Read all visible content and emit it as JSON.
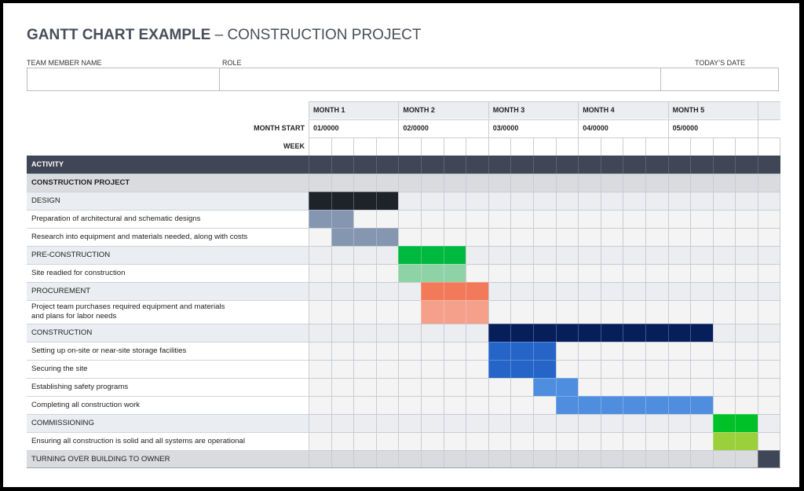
{
  "title": {
    "bold": "GANTT CHART EXAMPLE",
    "regular": " – CONSTRUCTION PROJECT"
  },
  "header_fields": {
    "team_member": "TEAM MEMBER NAME",
    "role": "ROLE",
    "date": "TODAY’S DATE"
  },
  "colors": {
    "header_dark": "#3f4756",
    "project_row": "#d9dbde",
    "phase_row": "#eaedf1",
    "task_row": "#ffffff",
    "grid_line": "#c8ccd2",
    "cell_empty_phase": "#ebedf0",
    "cell_empty_task": "#f4f4f4"
  },
  "chart_data": {
    "type": "table",
    "months": [
      {
        "label": "MONTH 1",
        "start": "01/0000"
      },
      {
        "label": "MONTH 2",
        "start": "02/0000"
      },
      {
        "label": "MONTH 3",
        "start": "03/0000"
      },
      {
        "label": "MONTH 4",
        "start": "04/0000"
      },
      {
        "label": "MONTH 5",
        "start": "05/0000"
      }
    ],
    "weeks_per_month": 4,
    "row_labels": {
      "month_start": "MONTH START",
      "week": "WEEK",
      "activity": "ACTIVITY"
    },
    "rows": [
      {
        "label": "CONSTRUCTION PROJECT",
        "kind": "project",
        "start_week": null,
        "end_week": null
      },
      {
        "label": "DESIGN",
        "kind": "phase",
        "start_week": 1,
        "end_week": 4,
        "color": "#1e2329"
      },
      {
        "label": "Preparation of architectural and schematic designs",
        "kind": "task",
        "start_week": 1,
        "end_week": 2,
        "color": "#8496b0"
      },
      {
        "label": "Research into equipment and materials needed, along with costs",
        "kind": "task",
        "start_week": 2,
        "end_week": 4,
        "color": "#8496b0"
      },
      {
        "label": "PRE-CONSTRUCTION",
        "kind": "phase",
        "start_week": 5,
        "end_week": 7,
        "color": "#00b93f"
      },
      {
        "label": "Site readied for construction",
        "kind": "task",
        "start_week": 5,
        "end_week": 7,
        "color": "#8ed3a5"
      },
      {
        "label": "PROCUREMENT",
        "kind": "phase",
        "start_week": 6,
        "end_week": 8,
        "color": "#f27a5a"
      },
      {
        "label": "Project team purchases required equipment and materials",
        "label2": "and plans for labor needs",
        "kind": "task",
        "start_week": 6,
        "end_week": 8,
        "color": "#f4a08a"
      },
      {
        "label": "CONSTRUCTION",
        "kind": "phase",
        "start_week": 9,
        "end_week": 18,
        "color": "#061e5a"
      },
      {
        "label": "Setting up on-site or near-site storage facilities",
        "kind": "task",
        "start_week": 9,
        "end_week": 11,
        "color": "#2565c8"
      },
      {
        "label": "Securing the site",
        "kind": "task",
        "start_week": 9,
        "end_week": 11,
        "color": "#2565c8"
      },
      {
        "label": "Establishing safety programs",
        "kind": "task",
        "start_week": 11,
        "end_week": 12,
        "color": "#4f8ede"
      },
      {
        "label": "Completing all construction work",
        "kind": "task",
        "start_week": 12,
        "end_week": 18,
        "color": "#4f8ede"
      },
      {
        "label": "COMMISSIONING",
        "kind": "phase",
        "start_week": 19,
        "end_week": 20,
        "color": "#00c128"
      },
      {
        "label": "Ensuring all construction is solid and all systems are operational",
        "kind": "task",
        "start_week": 19,
        "end_week": 20,
        "color": "#9bd03b"
      },
      {
        "label": "TURNING OVER BUILDING TO OWNER",
        "kind": "project",
        "start_week": 21,
        "end_week": 21,
        "color": "#3f4756"
      }
    ]
  }
}
